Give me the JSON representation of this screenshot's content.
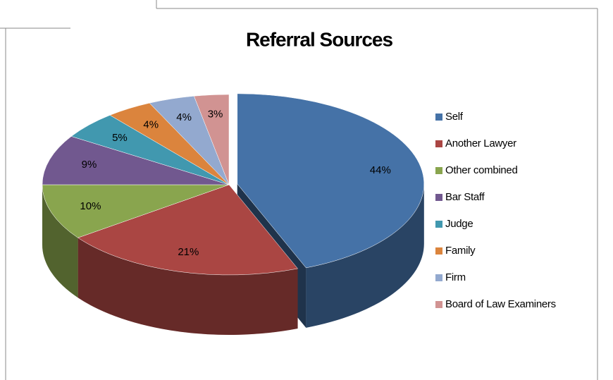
{
  "chart_data": {
    "type": "pie",
    "title": "Referral Sources",
    "categories": [
      "Self",
      "Another Lawyer",
      "Other combined",
      "Bar Staff",
      "Judge",
      "Family",
      "Firm",
      "Board of Law Examiners"
    ],
    "values": [
      44,
      21,
      10,
      9,
      5,
      4,
      4,
      3
    ],
    "value_labels": [
      "44%",
      "21%",
      "10%",
      "9%",
      "5%",
      "4%",
      "4%",
      "3%"
    ],
    "colors": [
      "#4572a7",
      "#aa4643",
      "#89a54e",
      "#71588f",
      "#4198af",
      "#db843d",
      "#93a9cf",
      "#d19392"
    ],
    "legend": "right",
    "three_d": true
  }
}
